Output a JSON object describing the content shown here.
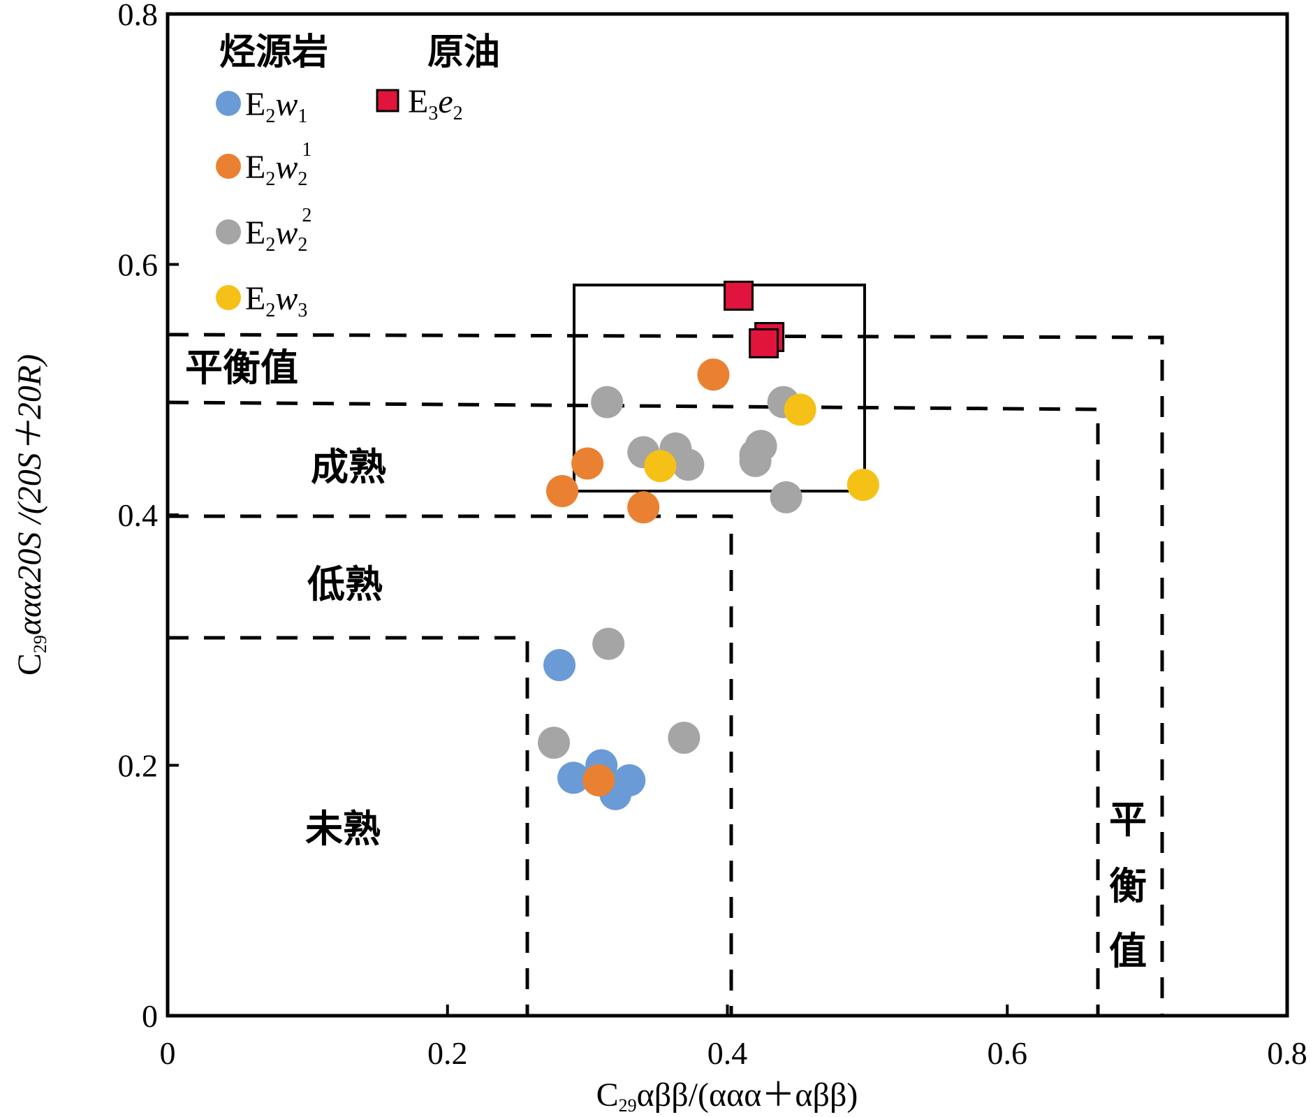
{
  "chart_data": {
    "type": "scatter",
    "xlabel": {
      "parts": [
        "C",
        "29",
        "αββ/(ααα＋αββ)"
      ]
    },
    "ylabel": {
      "parts": [
        "C",
        "29",
        "ααα20S /(20S＋20R)"
      ]
    },
    "xlim": [
      0,
      0.8
    ],
    "ylim": [
      0,
      0.8
    ],
    "xticks": [
      "0",
      "0.2",
      "0.4",
      "0.6",
      "0.8"
    ],
    "yticks": [
      "0",
      "0.2",
      "0.4",
      "0.6",
      "0.8"
    ],
    "legend": {
      "group_source_rock": "烃源岩",
      "group_crude_oil": "原油",
      "placement": "top-left"
    },
    "zones": {
      "equilibrium_h": "平衡值",
      "mature": "成熟",
      "low_mature": "低熟",
      "immature": "未熟",
      "equilibrium_v": [
        "平",
        "衡",
        "值"
      ]
    },
    "series": [
      {
        "name": "E2w1",
        "label_main": "E",
        "label_sub1": "2",
        "label_italic": "w",
        "label_sub2": "1",
        "label_sup": "",
        "marker": "circle",
        "color": "#6a9bd6",
        "points": [
          [
            0.28,
            0.28
          ],
          [
            0.31,
            0.2
          ],
          [
            0.29,
            0.19
          ],
          [
            0.33,
            0.188
          ],
          [
            0.32,
            0.177
          ]
        ]
      },
      {
        "name": "E2w2 1",
        "label_main": "E",
        "label_sub1": "2",
        "label_italic": "w",
        "label_sub2": "2",
        "label_sup": "1",
        "marker": "circle",
        "color": "#ea8132",
        "points": [
          [
            0.39,
            0.512
          ],
          [
            0.3,
            0.441
          ],
          [
            0.282,
            0.419
          ],
          [
            0.34,
            0.406
          ],
          [
            0.308,
            0.188
          ]
        ]
      },
      {
        "name": "E2w2 2",
        "label_main": "E",
        "label_sub1": "2",
        "label_italic": "w",
        "label_sub2": "2",
        "label_sup": "2",
        "marker": "circle",
        "color": "#a5a5a5",
        "points": [
          [
            0.314,
            0.49
          ],
          [
            0.44,
            0.49
          ],
          [
            0.34,
            0.45
          ],
          [
            0.363,
            0.453
          ],
          [
            0.372,
            0.44
          ],
          [
            0.424,
            0.455
          ],
          [
            0.42,
            0.448
          ],
          [
            0.42,
            0.443
          ],
          [
            0.442,
            0.414
          ],
          [
            0.315,
            0.297
          ],
          [
            0.276,
            0.218
          ],
          [
            0.369,
            0.222
          ]
        ]
      },
      {
        "name": "E2w3",
        "label_main": "E",
        "label_sub1": "2",
        "label_italic": "w",
        "label_sub2": "3",
        "label_sup": "",
        "marker": "circle",
        "color": "#f5c116",
        "points": [
          [
            0.452,
            0.484
          ],
          [
            0.352,
            0.439
          ],
          [
            0.497,
            0.424
          ]
        ]
      },
      {
        "name": "E3e2",
        "label_main": "E",
        "label_sub1": "3",
        "label_italic": "e",
        "label_sub2": "2",
        "label_sup": "",
        "marker": "square",
        "color": "#e0143c",
        "points": [
          [
            0.408,
            0.575
          ],
          [
            0.43,
            0.542
          ],
          [
            0.426,
            0.537
          ]
        ]
      }
    ],
    "grid": false
  }
}
